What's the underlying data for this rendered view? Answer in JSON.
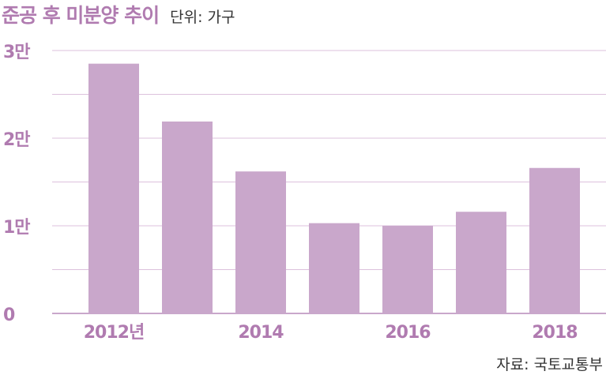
{
  "header": {
    "title": "준공 후 미분양 추이",
    "unit": "단위: 가구"
  },
  "footer": {
    "source": "자료: 국토교통부"
  },
  "colors": {
    "bar": "#c9a7cb",
    "accent": "#b07bb0",
    "grid": "#dcc1dc",
    "baseline": "#c9a7cb",
    "tick_text": "#b07bb0"
  },
  "chart_data": {
    "type": "bar",
    "categories": [
      "2012",
      "2013",
      "2014",
      "2015",
      "2016",
      "2017",
      "2018"
    ],
    "category_labels": [
      "2012년",
      "",
      "2014",
      "",
      "2016",
      "",
      "2018"
    ],
    "values": [
      28500,
      21900,
      16200,
      10300,
      10000,
      11600,
      16600
    ],
    "ylim": [
      0,
      30000
    ],
    "yticks": [
      0,
      10000,
      20000,
      30000
    ],
    "ytick_labels": [
      "0",
      "1만",
      "2만",
      "3만"
    ],
    "minor_gridlines": [
      5000,
      15000,
      25000
    ],
    "title": "준공 후 미분양 추이",
    "ylabel": "단위: 가구",
    "xlabel": "",
    "grid": true
  }
}
